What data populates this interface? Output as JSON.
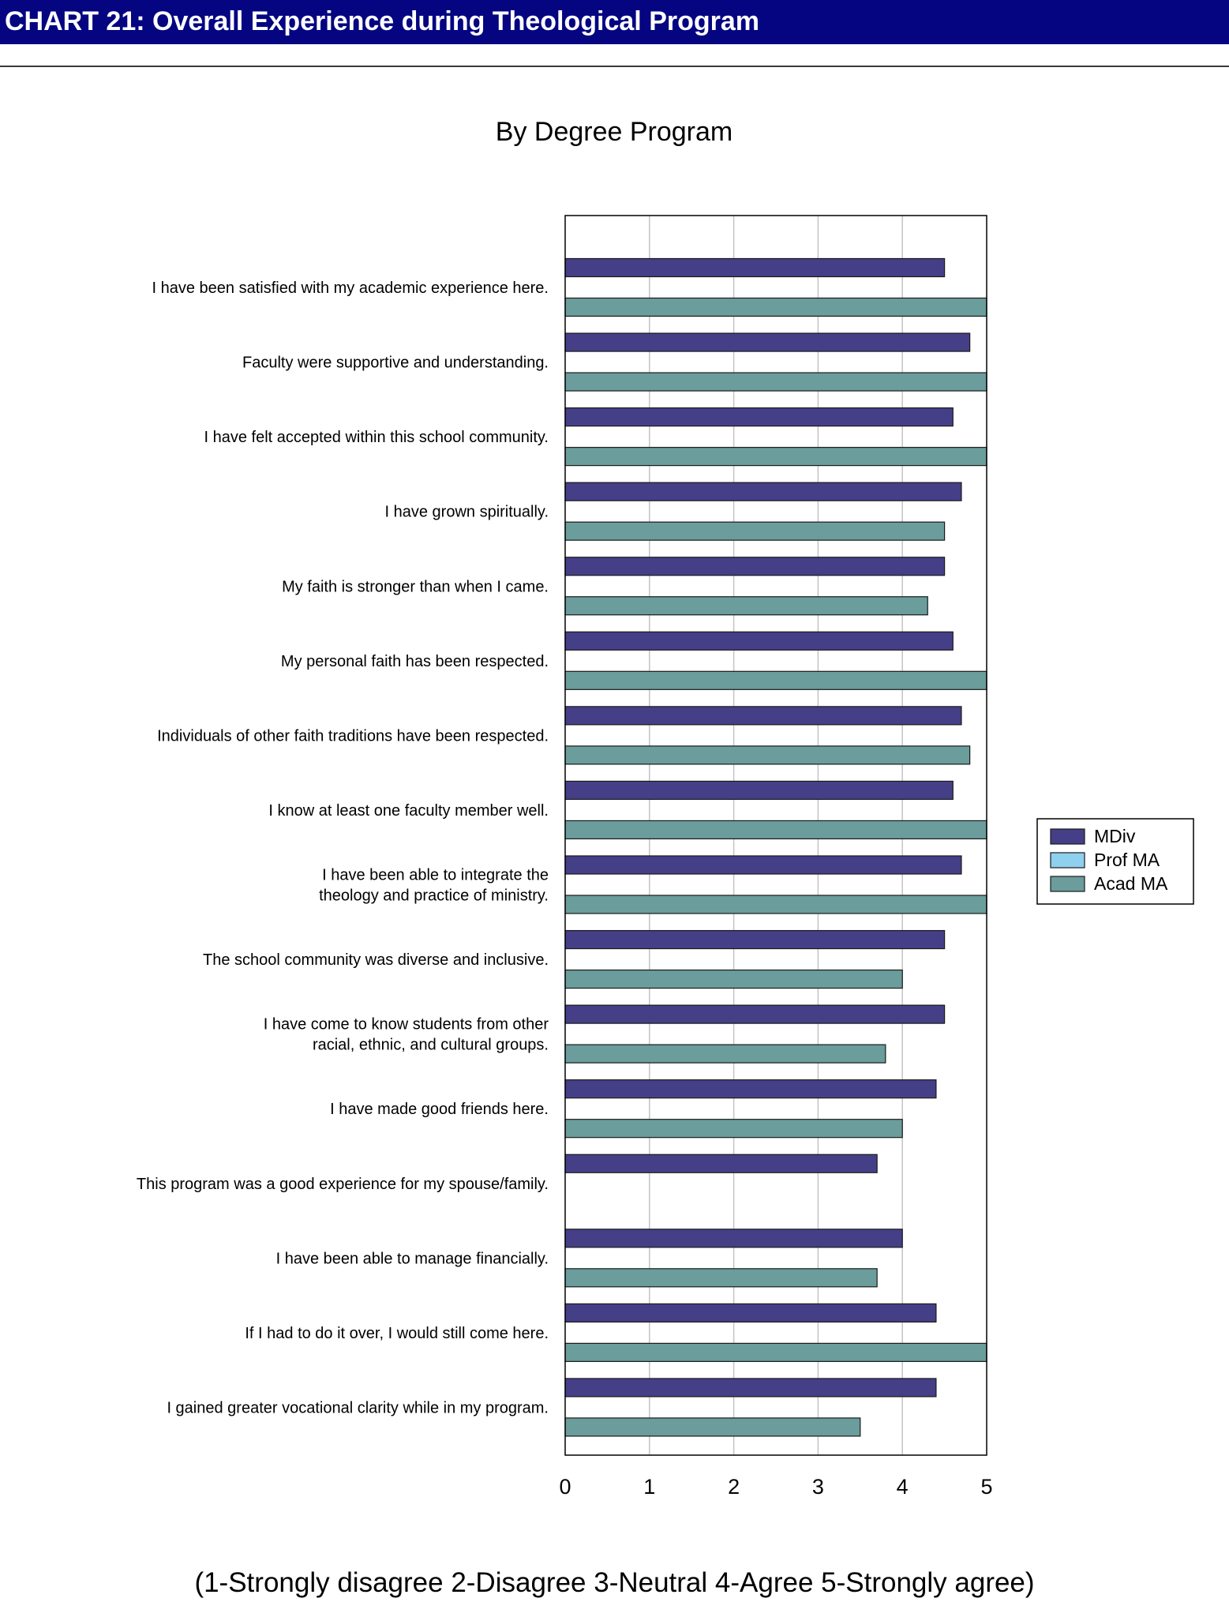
{
  "header": {
    "title": "CHART 21: Overall Experience during Theological Program"
  },
  "colors": {
    "header_bg": "#050582",
    "mdiv": "#453f88",
    "prof_ma": "#8fd0ee",
    "acad_ma": "#6a9d9b"
  },
  "chart_data": {
    "type": "bar",
    "orientation": "horizontal",
    "title": "By Degree Program",
    "xlim": [
      0,
      5
    ],
    "xticks": [
      0,
      1,
      2,
      3,
      4,
      5
    ],
    "grid": true,
    "legend_position": "right",
    "categories": [
      [
        "I have been satisfied with my academic experience here."
      ],
      [
        "Faculty were supportive and understanding."
      ],
      [
        "I have felt accepted within this school community."
      ],
      [
        "I have grown spiritually."
      ],
      [
        "My faith is stronger than when I came."
      ],
      [
        "My personal faith has been respected."
      ],
      [
        "Individuals of other faith traditions have been respected."
      ],
      [
        "I know at least one faculty member well."
      ],
      [
        "I have been able to integrate the",
        "theology and practice of ministry."
      ],
      [
        "The school community was diverse and inclusive."
      ],
      [
        "I have come to know students from other",
        "racial, ethnic, and cultural groups."
      ],
      [
        "I have made good friends here."
      ],
      [
        "This program was a good experience for my spouse/family."
      ],
      [
        "I have been able to manage financially."
      ],
      [
        "If I had to do it over, I would still come here."
      ],
      [
        "I gained greater vocational clarity while in my program."
      ]
    ],
    "series": [
      {
        "name": "MDiv",
        "values": [
          4.5,
          4.8,
          4.6,
          4.7,
          4.5,
          4.6,
          4.7,
          4.6,
          4.7,
          4.5,
          4.5,
          4.4,
          3.7,
          4.0,
          4.4,
          4.4
        ]
      },
      {
        "name": "Prof MA",
        "values": [
          null,
          null,
          null,
          null,
          null,
          null,
          null,
          null,
          null,
          null,
          null,
          null,
          null,
          null,
          null,
          null
        ]
      },
      {
        "name": "Acad MA",
        "values": [
          5.0,
          5.0,
          5.0,
          4.5,
          4.3,
          5.0,
          4.8,
          5.0,
          5.0,
          4.0,
          3.8,
          4.0,
          null,
          3.7,
          5.0,
          3.5
        ]
      }
    ],
    "scale_note": "(1-Strongly disagree  2-Disagree  3-Neutral  4-Agree  5-Strongly agree)"
  }
}
